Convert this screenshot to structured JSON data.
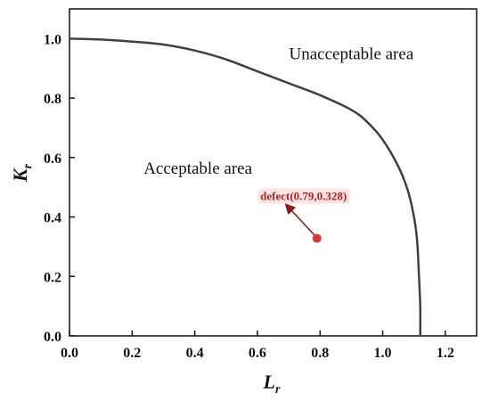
{
  "chart_data": {
    "type": "line",
    "xlabel": "L",
    "xlabel_sub": "r",
    "ylabel": "K",
    "ylabel_sub": "r",
    "xlim": [
      0,
      1.3
    ],
    "ylim": [
      0,
      1.1
    ],
    "xticks": [
      0.0,
      0.2,
      0.4,
      0.6,
      0.8,
      1.0,
      1.2
    ],
    "yticks": [
      0.0,
      0.2,
      0.4,
      0.6,
      0.8,
      1.0
    ],
    "xtick_labels": [
      "0.0",
      "0.2",
      "0.4",
      "0.6",
      "0.8",
      "1.0",
      "1.2"
    ],
    "ytick_labels": [
      "0.0",
      "0.2",
      "0.4",
      "0.6",
      "0.8",
      "1.0"
    ],
    "grid": false,
    "series": [
      {
        "color": "#404040",
        "x": [
          0.0,
          0.1,
          0.2,
          0.3,
          0.4,
          0.5,
          0.6,
          0.7,
          0.8,
          0.9,
          0.95,
          1.0,
          1.05,
          1.08,
          1.1,
          1.11,
          1.115,
          1.12,
          1.12
        ],
        "y": [
          1.0,
          0.997,
          0.99,
          0.98,
          0.96,
          0.93,
          0.89,
          0.85,
          0.81,
          0.76,
          0.72,
          0.66,
          0.57,
          0.49,
          0.4,
          0.32,
          0.22,
          0.1,
          0.0
        ]
      }
    ],
    "annotations": [
      {
        "text": "Unacceptable area",
        "x": 0.9,
        "y": 0.93
      },
      {
        "text": "Acceptable area",
        "x": 0.41,
        "y": 0.545
      }
    ],
    "point": {
      "label": "defect(0.79,0.328)",
      "x": 0.79,
      "y": 0.328,
      "color": "#d9383a"
    }
  }
}
